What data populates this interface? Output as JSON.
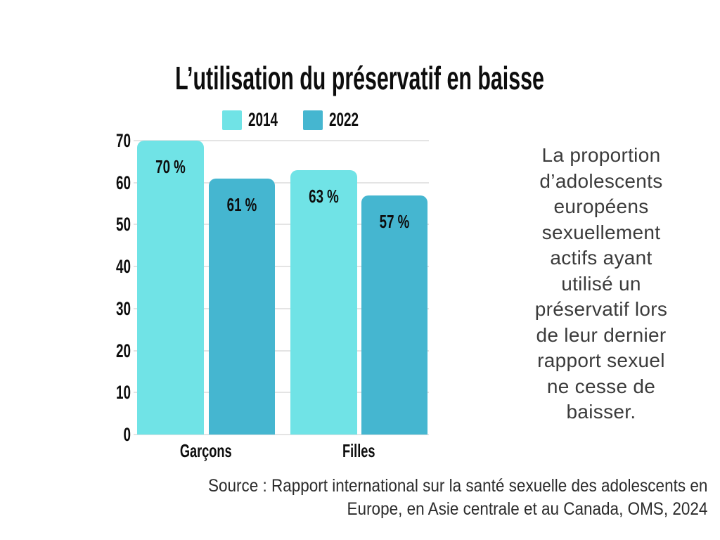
{
  "title": "L’utilisation du préservatif en baisse",
  "legend": [
    {
      "label": "2014",
      "color": "#70e3e6"
    },
    {
      "label": "2022",
      "color": "#45b6d0"
    }
  ],
  "chart_data": {
    "type": "bar",
    "title": "L’utilisation du préservatif en baisse",
    "categories": [
      "Garçons",
      "Filles"
    ],
    "series": [
      {
        "name": "2014",
        "values": [
          70,
          63
        ],
        "color": "#70e3e6"
      },
      {
        "name": "2022",
        "values": [
          61,
          57
        ],
        "color": "#45b6d0"
      }
    ],
    "value_labels": [
      [
        "70 %",
        "61 %"
      ],
      [
        "63 %",
        "57 %"
      ]
    ],
    "xlabel": "",
    "ylabel": "",
    "ylim": [
      0,
      70
    ],
    "yticks": [
      0,
      10,
      20,
      30,
      40,
      50,
      60,
      70
    ],
    "grid": true,
    "gridline_color": "#e4e4e4",
    "legend_position": "top"
  },
  "description_lines": [
    "La proportion",
    "d’adolescents",
    "européens",
    "sexuellement",
    "actifs ayant",
    "utilisé un",
    "préservatif lors",
    "de leur dernier",
    "rapport sexuel",
    "ne cesse de",
    "baisser."
  ],
  "source_lines": [
    "Source : Rapport international sur la santé sexuelle des adolescents en",
    "Europe, en Asie centrale et au Canada, OMS, 2024"
  ]
}
